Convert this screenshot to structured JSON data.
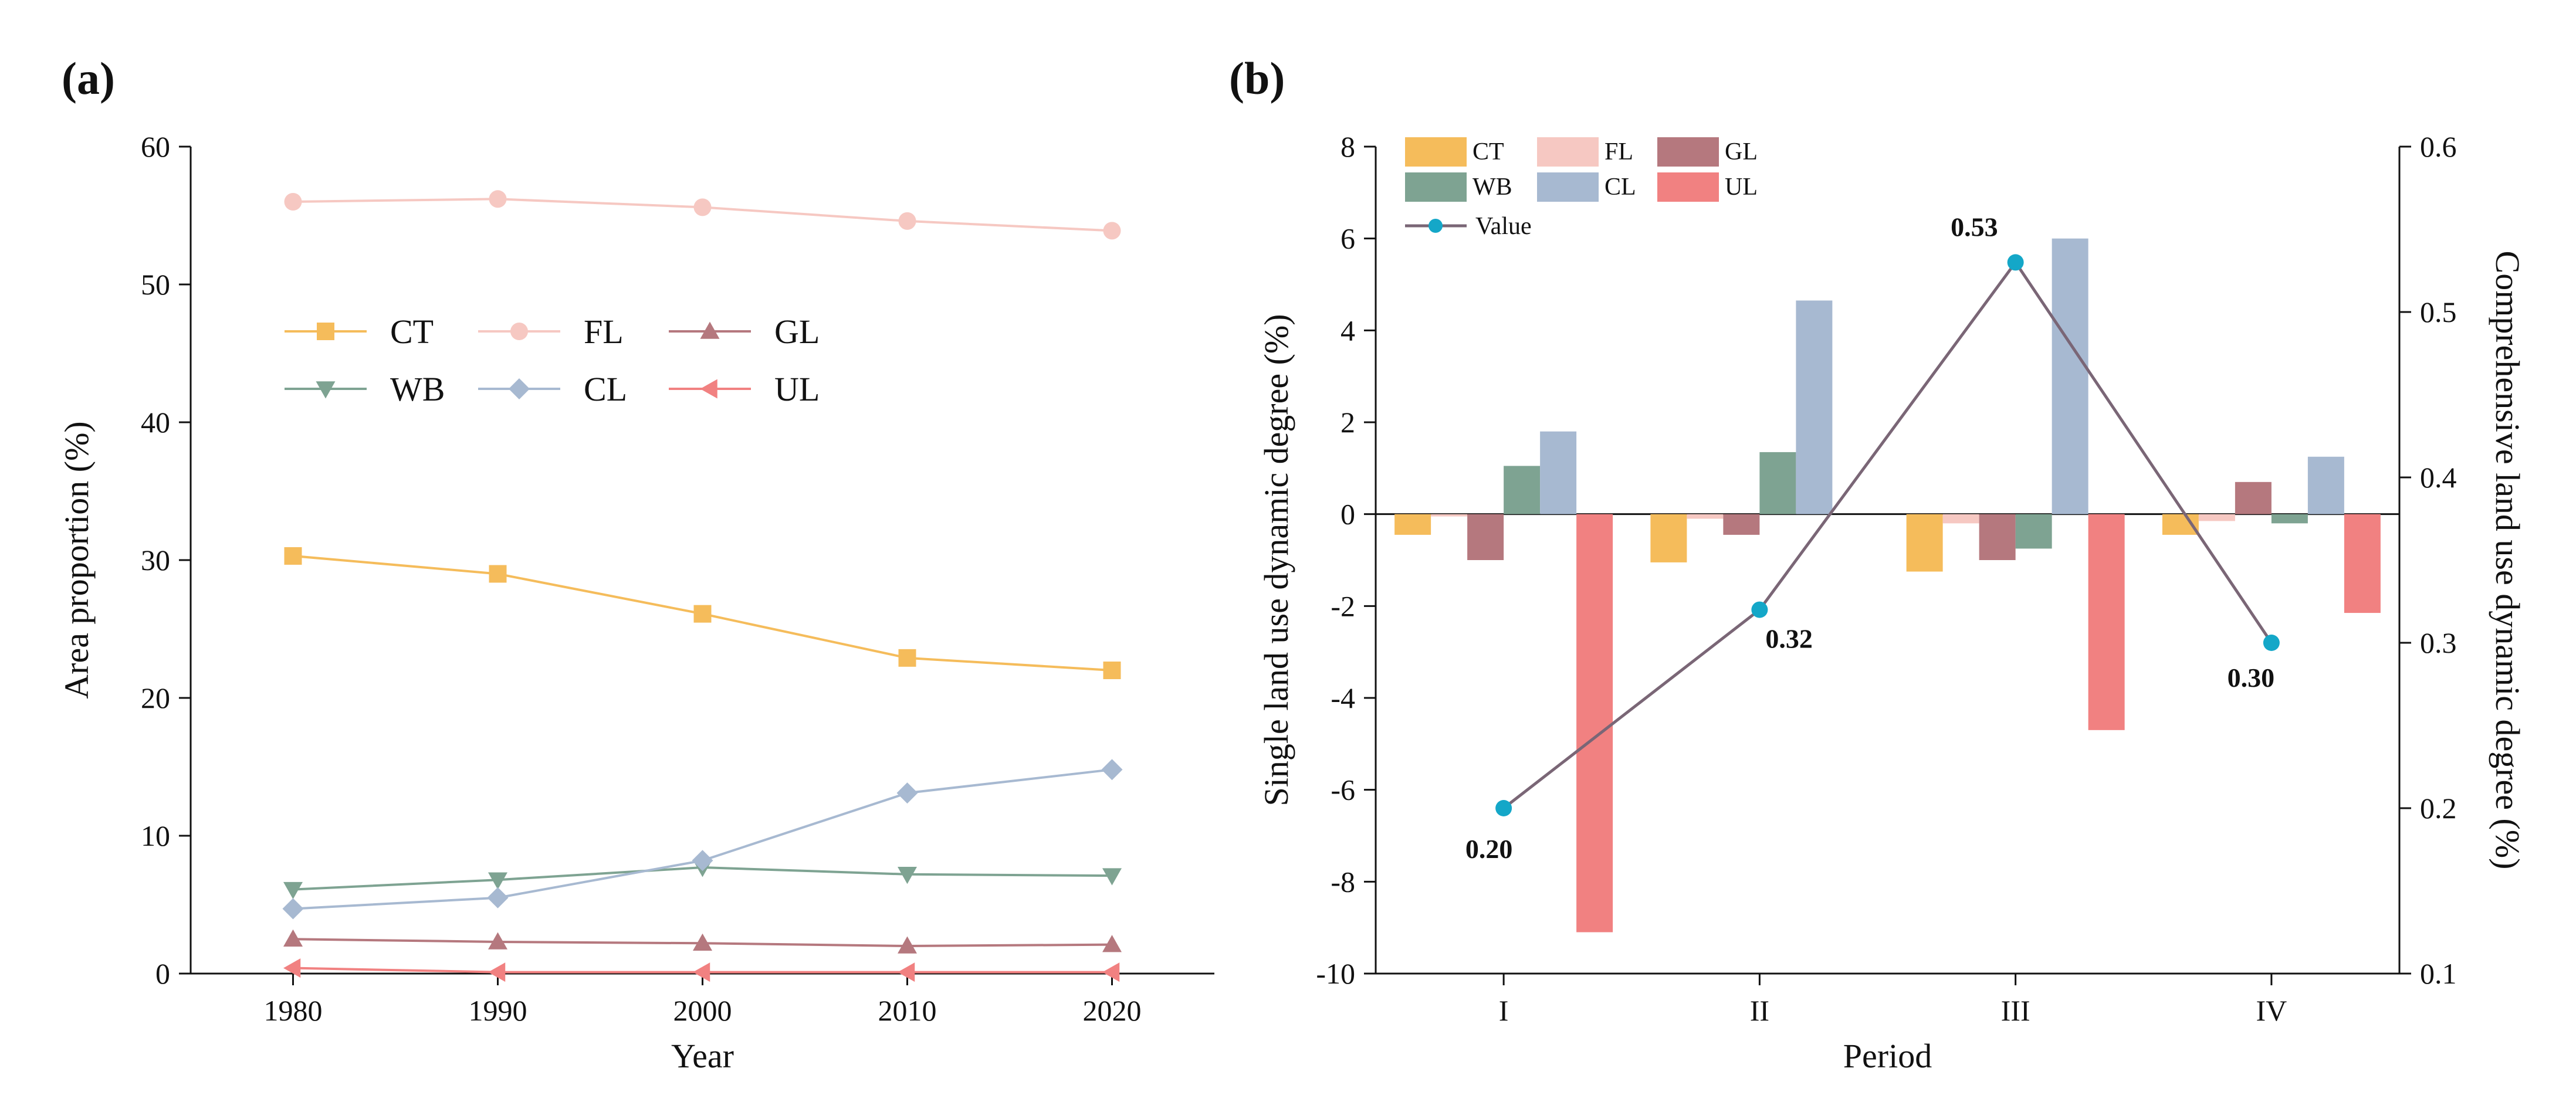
{
  "figure": {
    "panel_a_label": "(a)",
    "panel_b_label": "(b)"
  },
  "colors": {
    "CT": "#F5BC5B",
    "FL": "#F6C8C2",
    "GL": "#B5787E",
    "WB": "#7EA392",
    "CL": "#A7B9D1",
    "UL": "#F18181",
    "Value_line": "#7A6676",
    "Value_marker": "#14A7C8",
    "axis": "#111111"
  },
  "chart_data": [
    {
      "type": "line",
      "panel": "(a)",
      "title": "",
      "xlabel": "Year",
      "ylabel": "Area proportion (%)",
      "x": [
        1980,
        1990,
        2000,
        2010,
        2020
      ],
      "xticks": [
        "1980",
        "1990",
        "2000",
        "2010",
        "2020"
      ],
      "xlim": [
        1975,
        2025
      ],
      "ylim": [
        0,
        60
      ],
      "yticks": [
        "0",
        "10",
        "20",
        "30",
        "40",
        "50",
        "60"
      ],
      "series": [
        {
          "name": "CT",
          "marker": "square",
          "values": [
            30.3,
            29.0,
            26.1,
            22.9,
            22.0
          ]
        },
        {
          "name": "FL",
          "marker": "circle",
          "values": [
            56.0,
            56.2,
            55.6,
            54.6,
            53.9
          ]
        },
        {
          "name": "GL",
          "marker": "triangle-up",
          "values": [
            2.5,
            2.3,
            2.2,
            2.0,
            2.1
          ]
        },
        {
          "name": "WB",
          "marker": "triangle-down",
          "values": [
            6.1,
            6.8,
            7.7,
            7.2,
            7.1
          ]
        },
        {
          "name": "CL",
          "marker": "diamond",
          "values": [
            4.7,
            5.5,
            8.2,
            13.1,
            14.8
          ]
        },
        {
          "name": "UL",
          "marker": "triangle-left",
          "values": [
            0.4,
            0.1,
            0.1,
            0.1,
            0.1
          ]
        }
      ],
      "legend_position": "center-left"
    },
    {
      "type": "bar",
      "panel": "(b)",
      "title": "",
      "xlabel": "Period",
      "ylabel": "Single land use dynamic degree (%)",
      "y2label": "Comprehensive land use dynamic degree (%)",
      "categories": [
        "I",
        "II",
        "III",
        "IV"
      ],
      "ylim": [
        -10,
        8
      ],
      "yticks": [
        "-10",
        "-8",
        "-6",
        "-4",
        "-2",
        "0",
        "2",
        "4",
        "6",
        "8"
      ],
      "y2lim": [
        0.1,
        0.6
      ],
      "y2ticks": [
        "0.1",
        "0.2",
        "0.3",
        "0.4",
        "0.5",
        "0.6"
      ],
      "series": [
        {
          "name": "CT",
          "values": [
            -0.45,
            -1.05,
            -1.25,
            -0.45
          ]
        },
        {
          "name": "FL",
          "values": [
            -0.05,
            -0.1,
            -0.2,
            -0.15
          ]
        },
        {
          "name": "GL",
          "values": [
            -1.0,
            -0.45,
            -1.0,
            0.7
          ]
        },
        {
          "name": "WB",
          "values": [
            1.05,
            1.35,
            -0.75,
            -0.2
          ]
        },
        {
          "name": "CL",
          "values": [
            1.8,
            4.65,
            6.0,
            1.25
          ]
        },
        {
          "name": "UL",
          "values": [
            -9.1,
            0.0,
            -4.7,
            -2.15
          ]
        }
      ],
      "line_series": {
        "name": "Value",
        "axis": "right",
        "values": [
          0.2,
          0.32,
          0.53,
          0.3
        ]
      },
      "data_labels": [
        "0.20",
        "0.32",
        "0.53",
        "0.30"
      ],
      "legend_position": "top-left"
    }
  ]
}
